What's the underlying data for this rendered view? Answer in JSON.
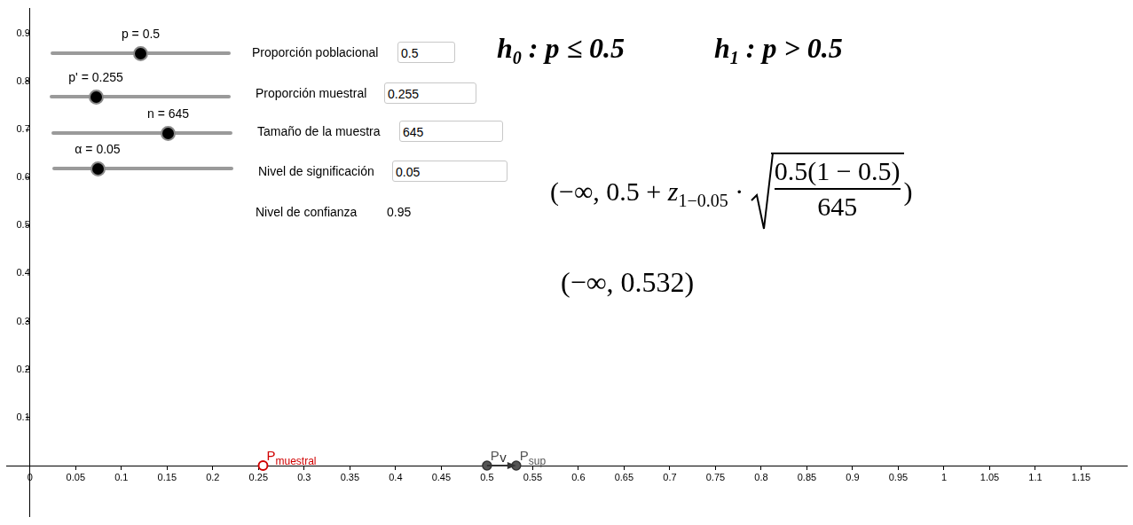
{
  "chart_data": {
    "type": "scatter",
    "xlim": [
      -0.026,
      1.2
    ],
    "ylim": [
      -0.106,
      0.952
    ],
    "xticks": [
      0,
      0.05,
      0.1,
      0.15,
      0.2,
      0.25,
      0.3,
      0.35,
      0.4,
      0.45,
      0.5,
      0.55,
      0.6,
      0.65,
      0.7,
      0.75,
      0.8,
      0.85,
      0.9,
      0.95,
      1,
      1.05,
      1.1,
      1.15
    ],
    "yticks": [
      0.1,
      0.2,
      0.3,
      0.4,
      0.5,
      0.6,
      0.7,
      0.8,
      0.9
    ],
    "grid": false,
    "series": [
      {
        "label": "P",
        "subscript": "muestral",
        "color": "#d00000",
        "marker": "open_circle",
        "x": [
          0.255
        ],
        "values": [
          0
        ]
      },
      {
        "label": "P",
        "color": "#555555",
        "marker": "circle",
        "x": [
          0.5
        ],
        "values": [
          0
        ]
      },
      {
        "label": "P",
        "subscript": "sup",
        "color": "#555555",
        "marker": "circle",
        "x": [
          0.532
        ],
        "values": [
          0
        ]
      }
    ],
    "vector": {
      "label": "v",
      "color": "#333333",
      "from": [
        0.5,
        0
      ],
      "to": [
        0.532,
        0
      ]
    }
  },
  "sliders": [
    {
      "label": "p = 0.5",
      "min": 0,
      "max": 1,
      "value": 0.5
    },
    {
      "label": "p' = 0.255",
      "min": 0,
      "max": 1,
      "value": 0.255
    },
    {
      "label": "n = 645",
      "min": 0,
      "max": 1000,
      "value": 645
    },
    {
      "label": "α = 0.05",
      "min": 0,
      "max": 0.2,
      "value": 0.05
    }
  ],
  "inputs": [
    {
      "label": "Proporción poblacional",
      "value": "0.5"
    },
    {
      "label": "Proporción muestral",
      "value": "0.255"
    },
    {
      "label": "Tamaño de la muestra",
      "value": "645"
    },
    {
      "label": "Nivel de significación",
      "value": "0.05"
    }
  ],
  "confidence": {
    "label": "Nivel de confianza",
    "value": "0.95"
  },
  "hypotheses": [
    {
      "symbol": "h",
      "subscript": "0",
      "statement": ": p ≤ 0.5"
    },
    {
      "symbol": "h",
      "subscript": "1",
      "statement": ": p > 0.5"
    }
  ],
  "formula": {
    "before": "(−∞, 0.5 + ",
    "z": "z",
    "z_subscript": "1−0.05",
    "operator": "·",
    "numerator": "0.5(1 − 0.5)",
    "denominator": "645",
    "after": ")"
  },
  "interval": "(−∞, 0.532)"
}
